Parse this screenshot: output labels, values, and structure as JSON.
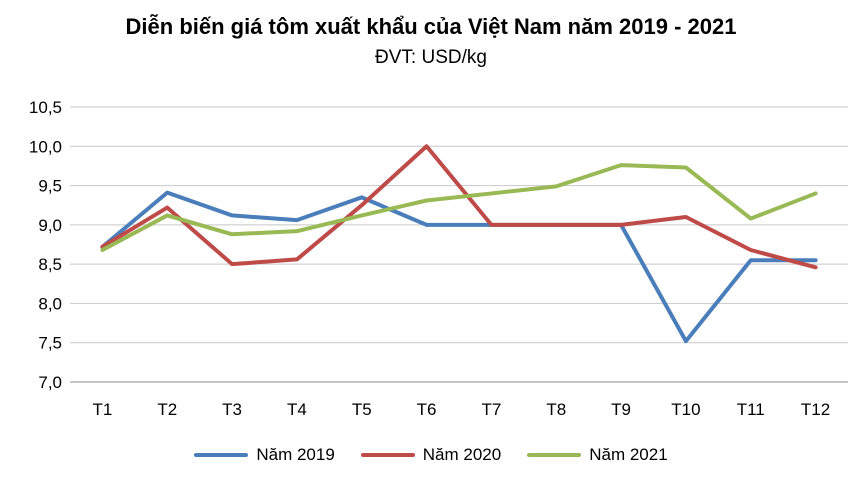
{
  "chart_data": {
    "type": "line",
    "title": "Diễn biến giá tôm xuất khẩu của Việt Nam năm 2019 - 2021",
    "subtitle": "ĐVT: USD/kg",
    "categories": [
      "T1",
      "T2",
      "T3",
      "T4",
      "T5",
      "T6",
      "T7",
      "T8",
      "T9",
      "T10",
      "T11",
      "T12"
    ],
    "y_ticks": [
      "7,0",
      "7,5",
      "8,0",
      "8,5",
      "9,0",
      "9,5",
      "10,0",
      "10,5"
    ],
    "ylim": [
      7.0,
      10.5
    ],
    "grid": true,
    "legend_position": "bottom",
    "series": [
      {
        "name": "Năm 2019",
        "color": "#4a7ebb",
        "values": [
          8.72,
          9.41,
          9.12,
          9.06,
          9.35,
          9.0,
          9.0,
          9.0,
          9.0,
          7.52,
          8.55,
          8.55
        ]
      },
      {
        "name": "Năm 2020",
        "color": "#be4b48",
        "values": [
          8.72,
          9.22,
          8.5,
          8.56,
          9.25,
          10.0,
          9.0,
          9.0,
          9.0,
          9.1,
          8.68,
          8.46
        ]
      },
      {
        "name": "Năm 2021",
        "color": "#98b954",
        "values": [
          8.68,
          9.12,
          8.88,
          8.92,
          9.12,
          9.31,
          9.4,
          9.49,
          9.76,
          9.73,
          9.08,
          9.4
        ]
      }
    ]
  }
}
